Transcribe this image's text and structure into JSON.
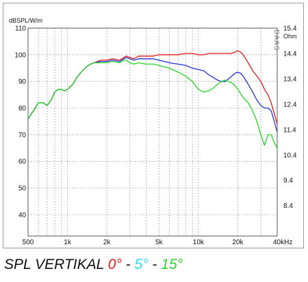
{
  "chart_data": {
    "type": "line",
    "title": "",
    "ylabel_left": "dBSPL/W/m",
    "ylabel_right": "Ohm",
    "watermark": "DAAS",
    "x_scale": "log",
    "xlim": [
      500,
      40000
    ],
    "ylim": [
      32,
      110
    ],
    "y2lim": [
      7.2,
      15.4
    ],
    "grid": true,
    "x_ticks": [
      {
        "value": 500,
        "label": "500"
      },
      {
        "value": 1000,
        "label": "1k"
      },
      {
        "value": 2000,
        "label": "2k"
      },
      {
        "value": 5000,
        "label": "5k"
      },
      {
        "value": 10000,
        "label": "10k"
      },
      {
        "value": 20000,
        "label": "20k"
      },
      {
        "value": 40000,
        "label": "40kHz"
      }
    ],
    "y_ticks": [
      {
        "value": 110,
        "label": "110"
      },
      {
        "value": 100,
        "label": "100"
      },
      {
        "value": 90,
        "label": "90"
      },
      {
        "value": 80,
        "label": "80"
      },
      {
        "value": 70,
        "label": "70"
      },
      {
        "value": 60,
        "label": "60"
      },
      {
        "value": 50,
        "label": "50"
      },
      {
        "value": 40,
        "label": "40"
      }
    ],
    "y2_ticks": [
      {
        "value": 15.4,
        "label": "15.4"
      },
      {
        "value": 14.4,
        "label": "14.4"
      },
      {
        "value": 13.4,
        "label": "13.4"
      },
      {
        "value": 12.4,
        "label": "12.4"
      },
      {
        "value": 11.4,
        "label": "11.4"
      },
      {
        "value": 10.4,
        "label": "10.4"
      },
      {
        "value": 9.4,
        "label": "9.4"
      },
      {
        "value": 8.4,
        "label": "8.4"
      }
    ],
    "series": [
      {
        "color": "#e41a1a",
        "x": [
          500,
          550,
          600,
          650,
          700,
          750,
          800,
          850,
          900,
          950,
          1000,
          1100,
          1200,
          1300,
          1400,
          1500,
          1600,
          1800,
          2000,
          2200,
          2500,
          2700,
          2800,
          3000,
          3200,
          3500,
          4000,
          4500,
          5000,
          6000,
          7000,
          8000,
          9000,
          10000,
          11000,
          12000,
          13000,
          14000,
          15000,
          16000,
          18000,
          19000,
          20000,
          21000,
          22000,
          24000,
          26000,
          28000,
          30000,
          32000,
          34000,
          36000,
          38000,
          40000
        ],
        "y": [
          76,
          79,
          82,
          82,
          81,
          83,
          86,
          87,
          87,
          86.5,
          87,
          89,
          92,
          94,
          95.5,
          96.5,
          97,
          98,
          98,
          98.5,
          98,
          99,
          99.5,
          99,
          98.5,
          99.5,
          99.5,
          99.5,
          100,
          100,
          100,
          100.5,
          100.5,
          100,
          100,
          100.5,
          100.5,
          100.5,
          100.5,
          100.5,
          100.5,
          101,
          101.5,
          101,
          100,
          97,
          94,
          92,
          90,
          87,
          85,
          82,
          78,
          74
        ]
      },
      {
        "color": "#1f2fd6",
        "x": [
          500,
          550,
          600,
          650,
          700,
          750,
          800,
          850,
          900,
          950,
          1000,
          1100,
          1200,
          1300,
          1400,
          1500,
          1600,
          1800,
          2000,
          2200,
          2500,
          2700,
          2800,
          3000,
          3200,
          3500,
          4000,
          4500,
          5000,
          6000,
          7000,
          8000,
          9000,
          10000,
          11000,
          12000,
          13000,
          14000,
          15000,
          16000,
          18000,
          19000,
          20000,
          21000,
          22000,
          24000,
          26000,
          28000,
          30000,
          32000,
          34000,
          36000,
          38000,
          40000
        ],
        "y": [
          76,
          79,
          82,
          82,
          81,
          83,
          86,
          87,
          87,
          86.5,
          87,
          89,
          92,
          94,
          95.5,
          96.5,
          97,
          97.5,
          97.5,
          98,
          97.5,
          98.5,
          99,
          98.5,
          98,
          98.5,
          98.5,
          98.5,
          98,
          97,
          96.5,
          96,
          95,
          94.5,
          94,
          92.5,
          91.5,
          90.5,
          90,
          90,
          92,
          93,
          93.5,
          93,
          92,
          89,
          86,
          83,
          81,
          80,
          80,
          79,
          75,
          71
        ]
      },
      {
        "color": "#22d422",
        "x": [
          500,
          550,
          600,
          650,
          700,
          750,
          800,
          850,
          900,
          950,
          1000,
          1100,
          1200,
          1300,
          1400,
          1500,
          1600,
          1800,
          2000,
          2200,
          2500,
          2700,
          2800,
          3000,
          3200,
          3500,
          4000,
          4500,
          5000,
          6000,
          7000,
          8000,
          9000,
          10000,
          11000,
          12000,
          13000,
          14000,
          15000,
          16000,
          18000,
          19000,
          20000,
          21000,
          22000,
          24000,
          26000,
          28000,
          30000,
          32000,
          34000,
          36000,
          38000,
          40000
        ],
        "y": [
          76,
          79,
          82,
          82,
          81,
          83,
          86,
          87,
          87,
          86.5,
          87,
          89,
          92,
          94,
          95.5,
          96.5,
          97,
          97,
          97,
          97.5,
          97,
          98,
          98,
          97,
          96.5,
          97,
          96.5,
          96.5,
          96,
          95,
          93.5,
          92,
          90,
          87,
          86,
          86.5,
          87.5,
          89,
          90,
          90.5,
          89.5,
          88.5,
          87,
          85.5,
          84,
          82,
          79,
          75,
          70,
          66,
          70,
          70,
          67,
          65
        ]
      }
    ]
  },
  "caption": {
    "prefix": "SPL VERTIKAL ",
    "deg0": "0°",
    "sep1": " - ",
    "deg5": "5°",
    "sep2": " - ",
    "deg15": "15°",
    "color_deg0": "#e41a1a",
    "color_deg5": "#35d6f2",
    "color_deg15": "#2cd42c"
  }
}
